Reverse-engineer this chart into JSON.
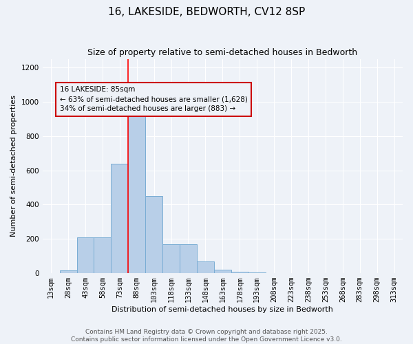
{
  "title": "16, LAKESIDE, BEDWORTH, CV12 8SP",
  "subtitle": "Size of property relative to semi-detached houses in Bedworth",
  "xlabel": "Distribution of semi-detached houses by size in Bedworth",
  "ylabel": "Number of semi-detached properties",
  "bin_labels": [
    "13sqm",
    "28sqm",
    "43sqm",
    "58sqm",
    "73sqm",
    "88sqm",
    "103sqm",
    "118sqm",
    "133sqm",
    "148sqm",
    "163sqm",
    "178sqm",
    "193sqm",
    "208sqm",
    "223sqm",
    "238sqm",
    "253sqm",
    "268sqm",
    "283sqm",
    "298sqm",
    "313sqm"
  ],
  "bin_values": [
    0,
    15,
    210,
    210,
    640,
    1000,
    450,
    170,
    170,
    70,
    20,
    10,
    5,
    2,
    1,
    1,
    0,
    0,
    0,
    0,
    0
  ],
  "bar_color": "#b8cfe8",
  "bar_edge_color": "#7aadd4",
  "property_line_index": 5,
  "property_line_label": "16 LAKESIDE: 85sqm",
  "pct_smaller": "63%",
  "pct_larger": "34%",
  "n_smaller": "1,628",
  "n_larger": "883",
  "annotation_box_color": "#cc0000",
  "ylim": [
    0,
    1250
  ],
  "yticks": [
    0,
    200,
    400,
    600,
    800,
    1000,
    1200
  ],
  "footer_line1": "Contains HM Land Registry data © Crown copyright and database right 2025.",
  "footer_line2": "Contains public sector information licensed under the Open Government Licence v3.0.",
  "background_color": "#eef2f8",
  "title_fontsize": 11,
  "subtitle_fontsize": 9,
  "axis_label_fontsize": 8,
  "tick_fontsize": 7.5,
  "annotation_fontsize": 7.5,
  "footer_fontsize": 6.5
}
